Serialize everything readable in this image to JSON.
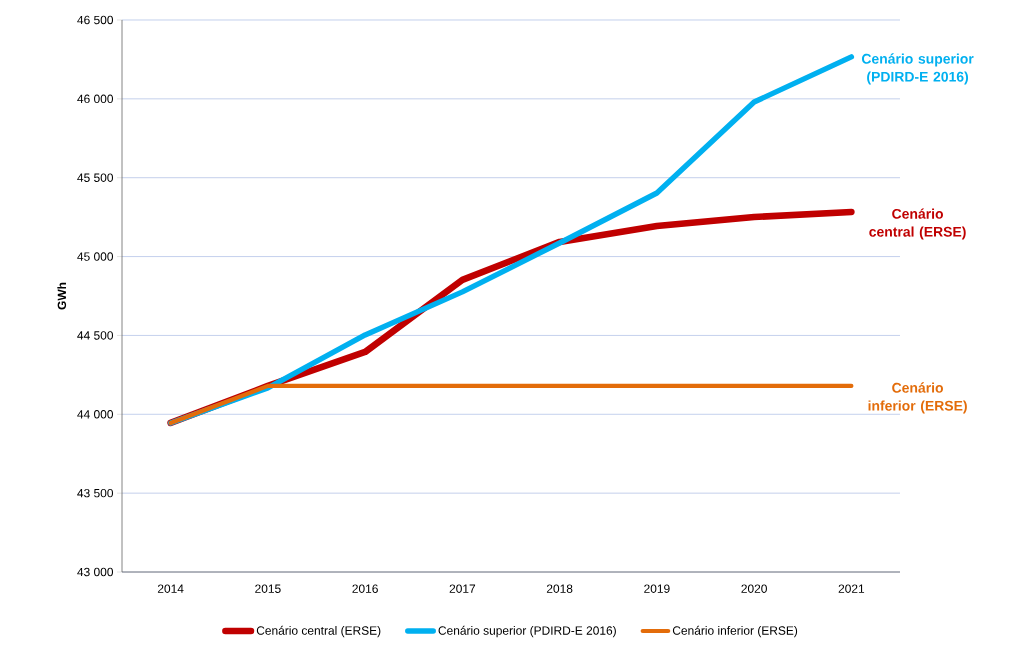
{
  "chart_data": {
    "type": "line",
    "ylabel": "GWh",
    "categories": [
      "2014",
      "2015",
      "2016",
      "2017",
      "2018",
      "2019",
      "2020",
      "2021"
    ],
    "series": [
      {
        "name": "Cenário central (ERSE)",
        "color": "#c00000",
        "values": [
          43945,
          44180,
          44395,
          44852,
          45093,
          45194,
          45251,
          45283
        ]
      },
      {
        "name": "Cenário superior (PDIRD-E 2016)",
        "color": "#00b0f0",
        "values": [
          43945,
          44167,
          44503,
          44776,
          45086,
          45403,
          45980,
          46266
        ]
      },
      {
        "name": "Cenário inferior (ERSE)",
        "color": "#e36c0a",
        "values": [
          43945,
          44180,
          44180,
          44180,
          44180,
          44180,
          44180,
          44180
        ]
      }
    ],
    "annotations": [
      {
        "text": "Cenário central (ERSE)",
        "x": "2021",
        "y": 45283
      },
      {
        "text": "Cenário superior (PDIRD-E 2016)",
        "x": "2021",
        "y": 46266
      },
      {
        "text": "Cenário inferior (ERSE)",
        "x": "2021",
        "y": 44180
      }
    ],
    "ylim": [
      43000,
      46500
    ],
    "yticks": [
      {
        "value": 43000,
        "label": "43 000"
      },
      {
        "value": 43500,
        "label": "43 500"
      },
      {
        "value": 44000,
        "label": "44 000"
      },
      {
        "value": 44500,
        "label": "44 500"
      },
      {
        "value": 45000,
        "label": "45 000"
      },
      {
        "value": 45500,
        "label": "45 500"
      },
      {
        "value": 46000,
        "label": "46 000"
      },
      {
        "value": 46500,
        "label": "46 500"
      }
    ],
    "grid": "y",
    "legend": "bottom",
    "marker": "none",
    "line_style": "solid"
  }
}
